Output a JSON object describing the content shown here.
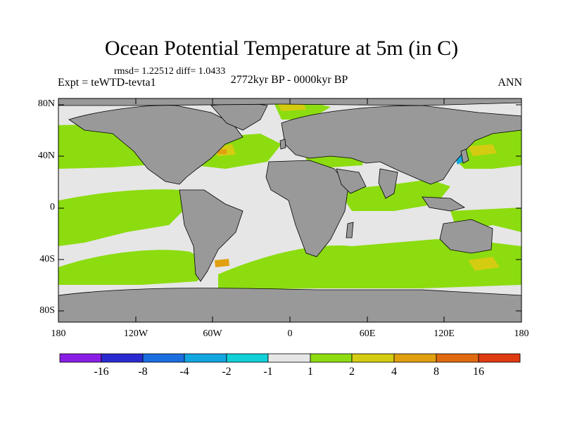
{
  "title": "Ocean Potential Temperature at 5m (in C)",
  "stats": "rmsd= 1.22512  diff= 1.0433",
  "experiment": "Expt = teWTD-tevta1",
  "period": "2772kyr BP - 0000kyr BP",
  "season": "ANN",
  "lat_ticks": [
    "80N",
    "40N",
    "0",
    "40S",
    "80S"
  ],
  "lon_ticks": [
    "180",
    "120W",
    "60W",
    "0",
    "60E",
    "120E",
    "180"
  ],
  "colorbar": {
    "labels": [
      "-16",
      "-8",
      "-4",
      "-2",
      "-1",
      "1",
      "2",
      "4",
      "8",
      "16"
    ],
    "colors": [
      "#8a1ee6",
      "#2a2ad0",
      "#1a6ee0",
      "#12a6e0",
      "#12d0d8",
      "#e6e6e6",
      "#8cdc10",
      "#d4cc10",
      "#e0a010",
      "#e06a10",
      "#e03a10"
    ]
  },
  "colors": {
    "land": "#999999",
    "neutral": "#e6e6e6",
    "warm1": "#8cdc10",
    "warm2": "#d4cc10",
    "warm3": "#e0a010",
    "cool": "#12a6e0"
  }
}
